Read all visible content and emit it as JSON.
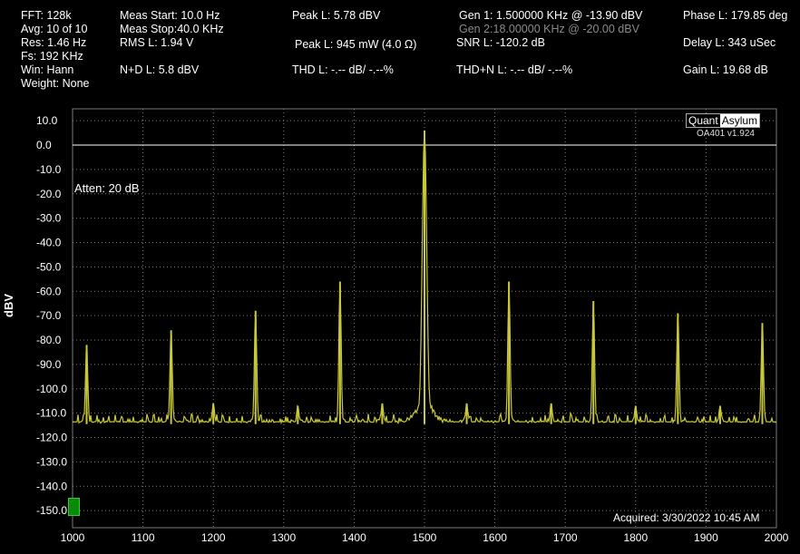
{
  "stats": {
    "fft": "FFT:  128k",
    "avg": "Avg:  10 of 10",
    "res": "Res:  1.46 Hz",
    "fs": "Fs:  192 KHz",
    "win": "Win:  Hann",
    "weight": "Weight: None",
    "meas_start": "Meas Start:  10.0 Hz",
    "meas_stop": "Meas Stop:40.0 KHz",
    "rms": "RMS L:  1.94 V",
    "nd": "N+D L:  5.8 dBV",
    "peak_dbv": "Peak L:  5.78 dBV",
    "peak_mw": "Peak L:  945 mW (4.0 Ω)",
    "thd": "THD L:  -.-- dB/ -.--%",
    "gen1": "Gen 1:  1.500000 KHz @ -13.90  dBV",
    "gen2": "Gen 2:18.00000 KHz @ -20.00  dBV",
    "snr": "SNR L:  -120.2 dB",
    "thdn": "THD+N L:  -.-- dB/ -.--%",
    "phase": "Phase L:  179.85 deg",
    "delay": "Delay L:  343 uSec",
    "gain": "Gain L:  19.68 dB"
  },
  "logo": {
    "part1": "Quant",
    "part2": "Asylum",
    "version": "OA401 v1.924"
  },
  "atten": "Atten: 20 dB",
  "acquired": "Acquired: 3/30/2022  10:45 AM",
  "colors": {
    "trace": "#c8c83a",
    "grid": "#7a7a7a",
    "refline": "#ffffff",
    "marker": "#0a8a0a"
  },
  "chart_data": {
    "type": "line",
    "title": "",
    "xlabel": "",
    "ylabel": "dBV",
    "xlim": [
      1000,
      2000
    ],
    "ylim": [
      -152,
      15
    ],
    "x_ticks": [
      1000,
      1100,
      1200,
      1300,
      1400,
      1500,
      1600,
      1700,
      1800,
      1900,
      2000
    ],
    "y_ticks": [
      10,
      0,
      -10,
      -20,
      -30,
      -40,
      -50,
      -60,
      -70,
      -80,
      -90,
      -100,
      -110,
      -120,
      -130,
      -140,
      -150
    ],
    "y_tick_labels": [
      "10.0",
      "0.0",
      "-10.0",
      "-20.0",
      "-30.0",
      "-40.0",
      "-50.0",
      "-60.0",
      "-70.0",
      "-80.0",
      "-90.0",
      "-100.0",
      "-110.0",
      "-120.0",
      "-130.0",
      "-140.0",
      "-150.0"
    ],
    "reference_line": 0,
    "grid": true,
    "noise_floor": -114.5,
    "peaks": [
      {
        "x": 1020,
        "y": -82
      },
      {
        "x": 1140,
        "y": -76
      },
      {
        "x": 1200,
        "y": -106
      },
      {
        "x": 1260,
        "y": -68
      },
      {
        "x": 1320,
        "y": -107
      },
      {
        "x": 1380,
        "y": -56
      },
      {
        "x": 1440,
        "y": -106
      },
      {
        "x": 1500,
        "y": 6
      },
      {
        "x": 1560,
        "y": -106
      },
      {
        "x": 1620,
        "y": -56
      },
      {
        "x": 1680,
        "y": -106
      },
      {
        "x": 1740,
        "y": -64
      },
      {
        "x": 1800,
        "y": -107
      },
      {
        "x": 1860,
        "y": -69
      },
      {
        "x": 1920,
        "y": -107
      },
      {
        "x": 1980,
        "y": -73
      }
    ],
    "series": [
      {
        "values_note": ""
      }
    ]
  }
}
